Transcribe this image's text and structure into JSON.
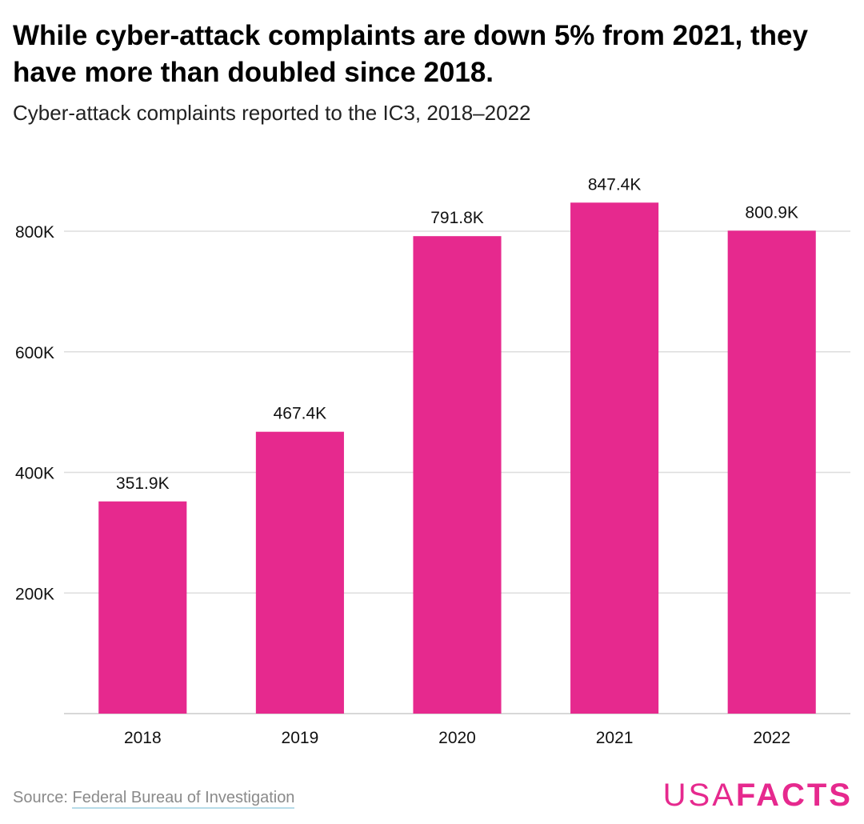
{
  "title": "While cyber-attack complaints are down 5% from 2021, they have more than doubled since 2018.",
  "subtitle": "Cyber-attack complaints reported to the IC3, 2018–2022",
  "source_prefix": "Source: ",
  "source_name": "Federal Bureau of Investigation",
  "logo_part1": "USA",
  "logo_part2": "FACTS",
  "colors": {
    "bar": "#e6298e",
    "grid": "#dddddd",
    "axis": "#cccccc"
  },
  "chart_data": {
    "type": "bar",
    "categories": [
      "2018",
      "2019",
      "2020",
      "2021",
      "2022"
    ],
    "values": [
      351900,
      467400,
      791800,
      847400,
      800900
    ],
    "data_labels": [
      "351.9K",
      "467.4K",
      "791.8K",
      "847.4K",
      "800.9K"
    ],
    "y_ticks": [
      200000,
      400000,
      600000,
      800000
    ],
    "y_tick_labels": [
      "200K",
      "400K",
      "600K",
      "800K"
    ],
    "ylim": [
      0,
      800000
    ],
    "grid": true
  }
}
